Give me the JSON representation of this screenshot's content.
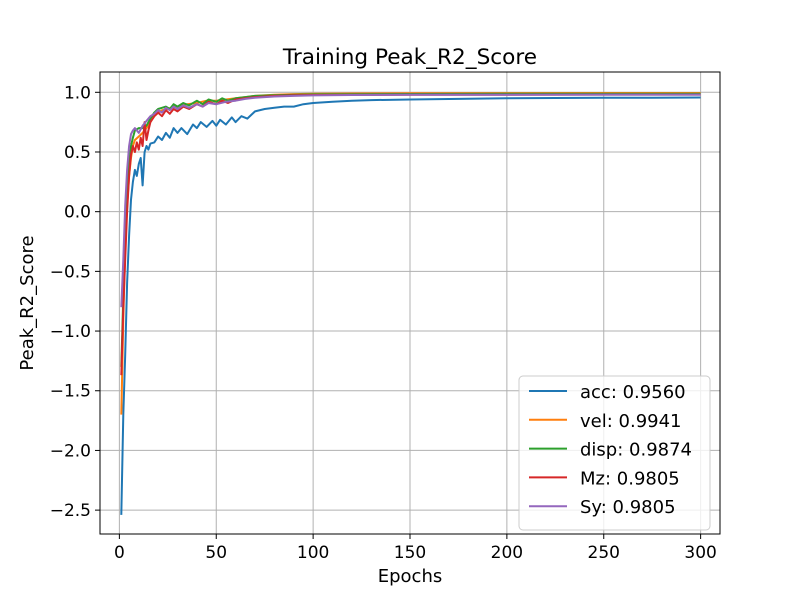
{
  "chart_data": {
    "type": "line",
    "title": "Training Peak_R2_Score",
    "xlabel": "Epochs",
    "ylabel": "Peak_R2_Score",
    "xlim": [
      -10,
      310
    ],
    "ylim": [
      -2.7,
      1.17
    ],
    "xticks": [
      0,
      50,
      100,
      150,
      200,
      250,
      300
    ],
    "yticks": [
      -2.5,
      -2.0,
      -1.5,
      -1.0,
      -0.5,
      0.0,
      0.5,
      1.0
    ],
    "xtick_labels": [
      "0",
      "50",
      "100",
      "150",
      "200",
      "250",
      "300"
    ],
    "ytick_labels": [
      "−2.5",
      "−2.0",
      "−1.5",
      "−1.0",
      "−0.5",
      "0.0",
      "0.5",
      "1.0"
    ],
    "grid": true,
    "legend_position": "lower-right",
    "series": [
      {
        "name": "acc: 0.9560",
        "color": "#1f77b4",
        "x": [
          1,
          2,
          3,
          4,
          5,
          6,
          7,
          8,
          9,
          10,
          11,
          12,
          13,
          14,
          15,
          16,
          18,
          20,
          22,
          24,
          26,
          28,
          30,
          32,
          35,
          38,
          40,
          42,
          45,
          48,
          50,
          52,
          55,
          58,
          60,
          63,
          66,
          70,
          75,
          80,
          85,
          90,
          95,
          100,
          110,
          120,
          130,
          150,
          175,
          200,
          225,
          250,
          275,
          300
        ],
        "y": [
          -2.54,
          -1.7,
          -1.2,
          -0.6,
          -0.2,
          0.1,
          0.25,
          0.35,
          0.3,
          0.4,
          0.45,
          0.22,
          0.5,
          0.55,
          0.52,
          0.57,
          0.58,
          0.63,
          0.6,
          0.66,
          0.62,
          0.7,
          0.66,
          0.7,
          0.65,
          0.73,
          0.7,
          0.75,
          0.71,
          0.76,
          0.72,
          0.77,
          0.73,
          0.79,
          0.75,
          0.8,
          0.78,
          0.84,
          0.86,
          0.87,
          0.88,
          0.88,
          0.9,
          0.91,
          0.92,
          0.93,
          0.935,
          0.94,
          0.945,
          0.95,
          0.952,
          0.954,
          0.955,
          0.956
        ]
      },
      {
        "name": "vel: 0.9941",
        "color": "#ff7f0e",
        "x": [
          1,
          2,
          3,
          4,
          5,
          6,
          7,
          8,
          10,
          12,
          14,
          16,
          18,
          20,
          22,
          25,
          28,
          30,
          35,
          40,
          45,
          50,
          55,
          60,
          65,
          70,
          80,
          90,
          100,
          120,
          150,
          200,
          250,
          300
        ],
        "y": [
          -1.7,
          -0.9,
          -0.3,
          0.05,
          0.3,
          0.45,
          0.55,
          0.6,
          0.63,
          0.66,
          0.7,
          0.75,
          0.8,
          0.83,
          0.85,
          0.86,
          0.88,
          0.88,
          0.9,
          0.91,
          0.93,
          0.93,
          0.94,
          0.95,
          0.96,
          0.97,
          0.98,
          0.985,
          0.988,
          0.99,
          0.992,
          0.993,
          0.994,
          0.994
        ]
      },
      {
        "name": "disp: 0.9874",
        "color": "#2ca02c",
        "x": [
          1,
          2,
          3,
          4,
          5,
          6,
          7,
          8,
          10,
          12,
          14,
          16,
          18,
          20,
          22,
          24,
          26,
          28,
          30,
          33,
          36,
          40,
          43,
          46,
          50,
          53,
          56,
          60,
          65,
          70,
          80,
          90,
          100,
          120,
          150,
          200,
          250,
          300
        ],
        "y": [
          -1.3,
          -0.7,
          -0.2,
          0.15,
          0.4,
          0.55,
          0.62,
          0.68,
          0.7,
          0.7,
          0.72,
          0.78,
          0.83,
          0.86,
          0.87,
          0.88,
          0.86,
          0.9,
          0.88,
          0.91,
          0.89,
          0.93,
          0.9,
          0.94,
          0.92,
          0.95,
          0.93,
          0.95,
          0.96,
          0.97,
          0.975,
          0.98,
          0.982,
          0.984,
          0.986,
          0.987,
          0.987,
          0.987
        ]
      },
      {
        "name": "Mz: 0.9805",
        "color": "#d62728",
        "x": [
          1,
          2,
          3,
          4,
          5,
          6,
          7,
          8,
          9,
          10,
          11,
          12,
          13,
          14,
          15,
          16,
          18,
          20,
          22,
          24,
          26,
          28,
          30,
          33,
          36,
          40,
          43,
          46,
          50,
          53,
          56,
          60,
          65,
          70,
          80,
          90,
          100,
          120,
          150,
          200,
          250,
          300
        ],
        "y": [
          -1.37,
          -0.8,
          -0.4,
          0.0,
          0.3,
          0.48,
          0.55,
          0.5,
          0.58,
          0.52,
          0.62,
          0.55,
          0.75,
          0.6,
          0.68,
          0.75,
          0.8,
          0.83,
          0.8,
          0.85,
          0.82,
          0.86,
          0.84,
          0.88,
          0.86,
          0.9,
          0.88,
          0.92,
          0.9,
          0.93,
          0.91,
          0.94,
          0.95,
          0.96,
          0.97,
          0.975,
          0.977,
          0.978,
          0.979,
          0.98,
          0.9805,
          0.9805
        ]
      },
      {
        "name": "Sy: 0.9805",
        "color": "#9467bd",
        "x": [
          1,
          2,
          3,
          4,
          5,
          6,
          7,
          8,
          10,
          12,
          14,
          16,
          18,
          20,
          22,
          24,
          26,
          28,
          30,
          33,
          36,
          40,
          43,
          46,
          50,
          55,
          60,
          65,
          70,
          80,
          90,
          100,
          120,
          150,
          200,
          250,
          300
        ],
        "y": [
          -0.8,
          -0.4,
          0.05,
          0.35,
          0.55,
          0.65,
          0.68,
          0.7,
          0.66,
          0.72,
          0.76,
          0.8,
          0.82,
          0.85,
          0.83,
          0.87,
          0.85,
          0.88,
          0.86,
          0.89,
          0.87,
          0.9,
          0.88,
          0.91,
          0.9,
          0.92,
          0.93,
          0.945,
          0.955,
          0.965,
          0.97,
          0.974,
          0.977,
          0.979,
          0.98,
          0.9805,
          0.9805
        ]
      }
    ]
  }
}
